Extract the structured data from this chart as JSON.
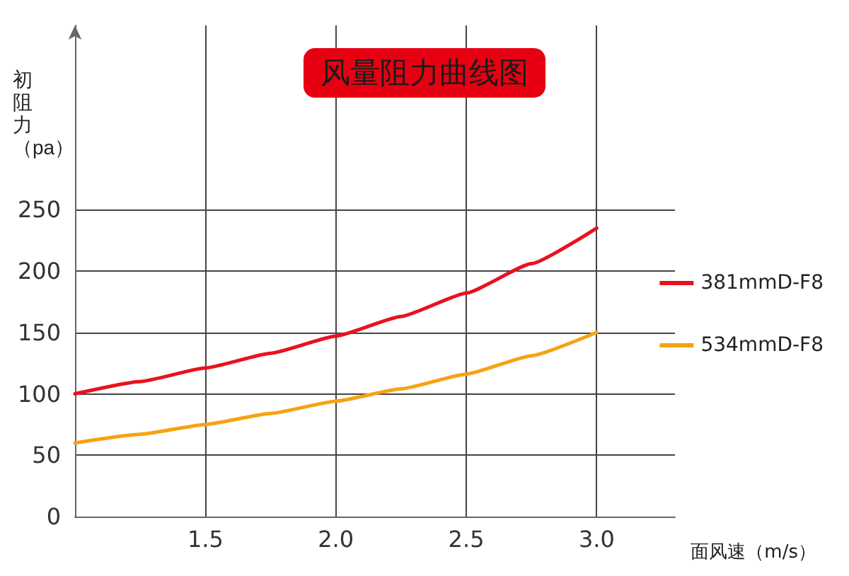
{
  "chart_data": {
    "type": "line",
    "title": "风量阻力曲线图",
    "xlabel": "面风速（m/s）",
    "ylabel": "初阻力（pa）",
    "x": [
      1.0,
      1.25,
      1.5,
      1.75,
      2.0,
      2.25,
      2.5,
      2.75,
      3.0
    ],
    "series": [
      {
        "name": "381mmD-F8",
        "color": "#e8121e",
        "values": [
          100,
          110,
          121,
          133,
          147,
          163,
          182,
          206,
          235
        ]
      },
      {
        "name": "534mmD-F8",
        "color": "#f5a312",
        "values": [
          60,
          67,
          75,
          84,
          94,
          104,
          116,
          131,
          150
        ]
      }
    ],
    "xlim": [
      1.0,
      3.3
    ],
    "xticks": [
      1.5,
      {
        "value": 2,
        "label": "2.0"
      },
      2.5,
      {
        "value": 3,
        "label": "3.0"
      }
    ],
    "ylim": [
      0,
      400
    ],
    "yticks": [
      0,
      50,
      100,
      150,
      200,
      250
    ],
    "grid": true,
    "legend": "right",
    "marker": "none",
    "line_style": "solid"
  }
}
